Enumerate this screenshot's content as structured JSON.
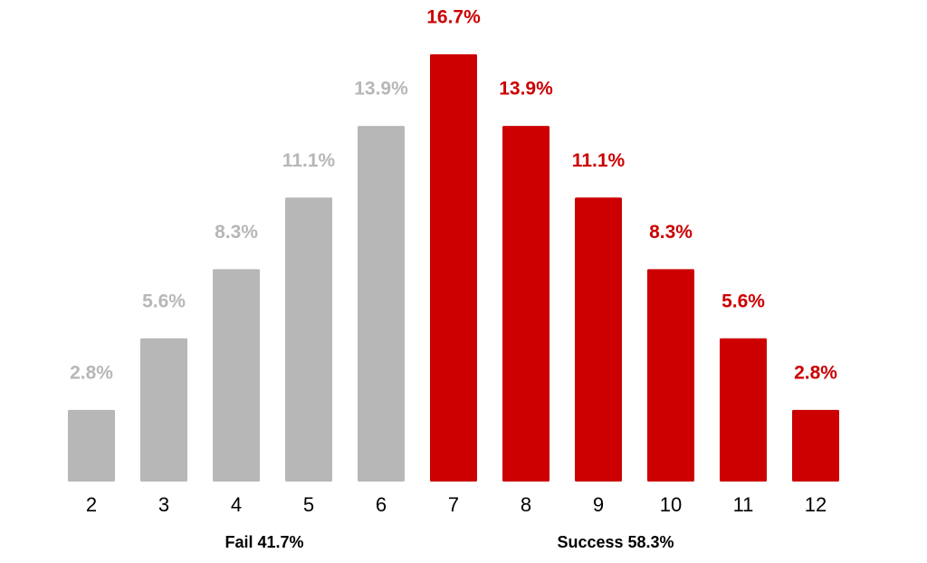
{
  "chart_data": {
    "type": "bar",
    "categories": [
      "2",
      "3",
      "4",
      "5",
      "6",
      "7",
      "8",
      "9",
      "10",
      "11",
      "12"
    ],
    "values": [
      2.8,
      5.6,
      8.3,
      11.1,
      13.9,
      16.7,
      13.9,
      11.1,
      8.3,
      5.6,
      2.8
    ],
    "value_labels": [
      "2.8%",
      "5.6%",
      "8.3%",
      "11.1%",
      "13.9%",
      "16.7%",
      "13.9%",
      "11.1%",
      "8.3%",
      "5.6%",
      "2.8%"
    ],
    "colors": [
      "#b7b7b7",
      "#b7b7b7",
      "#b7b7b7",
      "#b7b7b7",
      "#b7b7b7",
      "#cc0000",
      "#cc0000",
      "#cc0000",
      "#cc0000",
      "#cc0000",
      "#cc0000"
    ],
    "annotations": [
      "Fail 41.7%",
      "Success 58.3%"
    ]
  }
}
